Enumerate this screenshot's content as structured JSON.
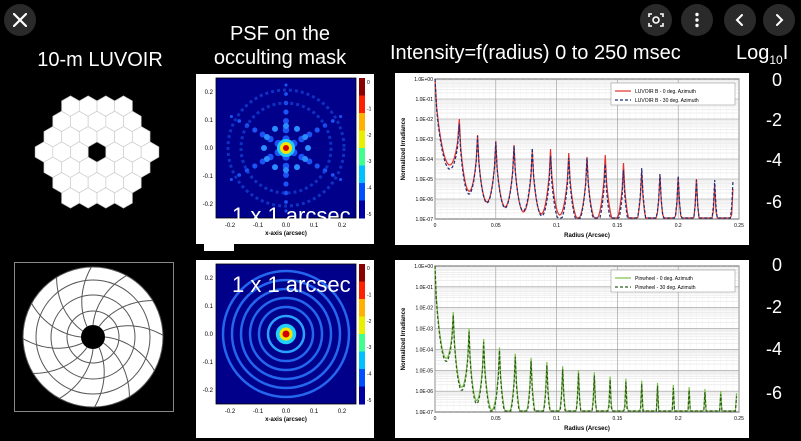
{
  "toolbar": {
    "close_icon": "close-icon",
    "lens_icon": "lens-icon",
    "more_icon": "more-icon",
    "prev_icon": "chevron-left-icon",
    "next_icon": "chevron-right-icon"
  },
  "headings": {
    "luvoir": "10-m LUVOIR",
    "psf_line1": "PSF on the",
    "psf_line2": "occulting mask",
    "intensity": "Intensity=f(radius)  0 to 250 msec",
    "log_prefix": "Log",
    "log_sub": "10",
    "log_suffix": "I"
  },
  "scale_top": [
    "0",
    "-2",
    "-4",
    "-6"
  ],
  "scale_bottom": [
    "0",
    "-2",
    "-4",
    "-6"
  ],
  "psf_top": {
    "label": "1 x 1 arcsec",
    "yticks": [
      "0.2",
      "0.1",
      "0.0",
      "-0.1",
      "-0.2"
    ],
    "xticks": [
      "-0.2",
      "-0.1",
      "0.0",
      "0.1",
      "0.2"
    ],
    "cbar": [
      "0",
      "-1",
      "-2",
      "-3",
      "-4",
      "-5"
    ],
    "xlabel": "x-axis (arcsec)"
  },
  "psf_bottom": {
    "label": "1 x 1 arcsec",
    "yticks": [
      "0.2",
      "0.1",
      "0.0",
      "-0.1",
      "-0.2"
    ],
    "xticks": [
      "-0.2",
      "-0.1",
      "0.0",
      "0.1",
      "0.2"
    ],
    "cbar": [
      "0",
      "-1",
      "-2",
      "-3",
      "-4",
      "-5"
    ],
    "xlabel": "x-axis (arcsec)"
  },
  "chart_data": [
    {
      "type": "line",
      "title": "",
      "xlabel": "Radius (Arcsec)",
      "ylabel": "Normalized Irradiance",
      "xlim": [
        0,
        0.25
      ],
      "ylim_log10": [
        -7,
        0
      ],
      "xticks": [
        "0",
        "0.05",
        "0.1",
        "0.15",
        "0.2",
        "0.25"
      ],
      "yticks": [
        "1.0E+00",
        "1.0E-01",
        "1.0E-02",
        "1.0E-03",
        "1.0E-04",
        "1.0E-05",
        "1.0E-06",
        "1.0E-07"
      ],
      "series": [
        {
          "name": "LUVOIR B - 0 deg. Azimuth",
          "color": "#e0302a",
          "style": "solid",
          "peaks": [
            [
              0.0,
              0.0
            ],
            [
              0.02,
              -2.0
            ],
            [
              0.035,
              -2.8
            ],
            [
              0.05,
              -3.1
            ],
            [
              0.065,
              -3.3
            ],
            [
              0.08,
              -3.6
            ],
            [
              0.095,
              -3.5
            ],
            [
              0.11,
              -3.7
            ],
            [
              0.125,
              -3.9
            ],
            [
              0.14,
              -3.8
            ],
            [
              0.155,
              -4.2
            ],
            [
              0.17,
              -4.6
            ],
            [
              0.185,
              -4.8
            ],
            [
              0.2,
              -4.9
            ],
            [
              0.215,
              -5.0
            ],
            [
              0.23,
              -5.3
            ],
            [
              0.245,
              -5.5
            ]
          ]
        },
        {
          "name": "LUVOIR B - 30 deg. Azimuth",
          "color": "#1f2d7a",
          "style": "dashed",
          "peaks": [
            [
              0.0,
              0.0
            ],
            [
              0.02,
              -2.1
            ],
            [
              0.035,
              -2.7
            ],
            [
              0.05,
              -3.0
            ],
            [
              0.065,
              -3.2
            ],
            [
              0.08,
              -3.3
            ],
            [
              0.095,
              -3.7
            ],
            [
              0.11,
              -3.8
            ],
            [
              0.125,
              -3.8
            ],
            [
              0.14,
              -4.1
            ],
            [
              0.155,
              -4.4
            ],
            [
              0.17,
              -4.3
            ],
            [
              0.185,
              -4.6
            ],
            [
              0.2,
              -4.7
            ],
            [
              0.215,
              -4.9
            ],
            [
              0.23,
              -4.9
            ],
            [
              0.245,
              -5.0
            ]
          ]
        }
      ]
    },
    {
      "type": "line",
      "title": "",
      "xlabel": "Radius (Arcsec)",
      "ylabel": "Normalized Irradiance",
      "xlim": [
        0,
        0.25
      ],
      "ylim_log10": [
        -7,
        0
      ],
      "xticks": [
        "0",
        "0.05",
        "0.1",
        "0.15",
        "0.2",
        "0.25"
      ],
      "yticks": [
        "1.0E+00",
        "1.0E-01",
        "1.0E-02",
        "1.0E-03",
        "1.0E-04",
        "1.0E-05",
        "1.0E-06",
        "1.0E-07"
      ],
      "series": [
        {
          "name": "Pinwheel - 0 deg. Azimuth",
          "color": "#7cc24a",
          "style": "solid",
          "peaks": [
            [
              0.0,
              0.0
            ],
            [
              0.015,
              -2.2
            ],
            [
              0.028,
              -3.0
            ],
            [
              0.04,
              -3.5
            ],
            [
              0.053,
              -3.9
            ],
            [
              0.066,
              -4.2
            ],
            [
              0.079,
              -4.4
            ],
            [
              0.092,
              -4.6
            ],
            [
              0.105,
              -4.8
            ],
            [
              0.118,
              -5.0
            ],
            [
              0.131,
              -5.1
            ],
            [
              0.144,
              -5.3
            ],
            [
              0.157,
              -5.4
            ],
            [
              0.17,
              -5.5
            ],
            [
              0.183,
              -5.6
            ],
            [
              0.196,
              -5.7
            ],
            [
              0.209,
              -5.8
            ],
            [
              0.222,
              -5.9
            ],
            [
              0.235,
              -6.0
            ],
            [
              0.248,
              -6.1
            ]
          ]
        },
        {
          "name": "Pinwheel - 30 deg. Azimuth",
          "color": "#2e5a1c",
          "style": "dashed",
          "peaks": [
            [
              0.0,
              0.0
            ],
            [
              0.015,
              -2.2
            ],
            [
              0.028,
              -3.0
            ],
            [
              0.04,
              -3.5
            ],
            [
              0.053,
              -3.9
            ],
            [
              0.066,
              -4.2
            ],
            [
              0.079,
              -4.4
            ],
            [
              0.092,
              -4.6
            ],
            [
              0.105,
              -4.8
            ],
            [
              0.118,
              -5.0
            ],
            [
              0.131,
              -5.1
            ],
            [
              0.144,
              -5.3
            ],
            [
              0.157,
              -5.4
            ],
            [
              0.17,
              -5.5
            ],
            [
              0.183,
              -5.6
            ],
            [
              0.196,
              -5.7
            ],
            [
              0.209,
              -5.8
            ],
            [
              0.222,
              -5.9
            ],
            [
              0.235,
              -6.0
            ],
            [
              0.248,
              -6.1
            ]
          ]
        }
      ]
    }
  ]
}
